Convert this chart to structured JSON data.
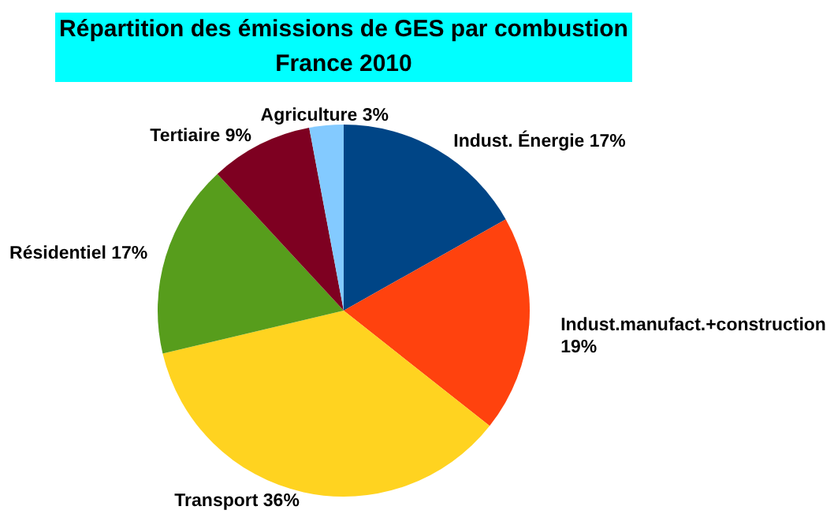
{
  "chart_data": {
    "type": "pie",
    "title": "Répartition des émissions de GES par combustion\nFrance 2010",
    "categories": [
      "Indust. Énergie",
      "Indust.manufact.+construction",
      "Transport",
      "Résidentiel",
      "Tertiaire",
      "Agriculture"
    ],
    "values": [
      17,
      19,
      36,
      17,
      9,
      3
    ],
    "value_labels": [
      "17%",
      "19%",
      "36%",
      "17%",
      "9%",
      "3%"
    ],
    "colors": [
      "#004586",
      "#ff420e",
      "#ffd320",
      "#579d1c",
      "#7e0021",
      "#83caff"
    ]
  }
}
